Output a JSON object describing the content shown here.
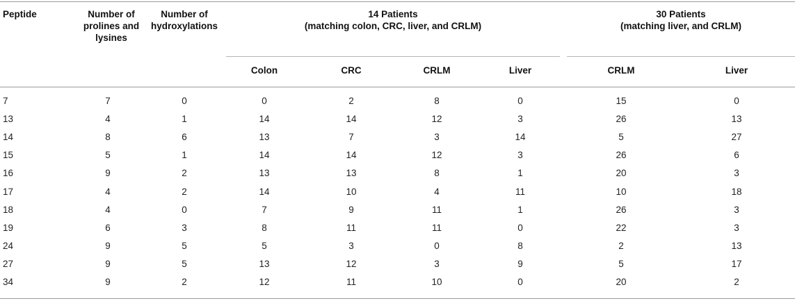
{
  "table": {
    "headers": {
      "peptide": "Peptide",
      "prolines_line1": "Number of",
      "prolines_line2": "prolines and",
      "prolines_line3": "lysines",
      "hydrox_line1": "Number of",
      "hydrox_line2": "hydroxylations",
      "group14_line1": "14 Patients",
      "group14_line2": "(matching colon, CRC, liver, and CRLM)",
      "group30_line1": "30 Patients",
      "group30_line2": "(matching liver, and CRLM)",
      "sub": [
        "Colon",
        "CRC",
        "CRLM",
        "Liver",
        "CRLM",
        "Liver"
      ]
    },
    "rows": [
      [
        "7",
        "7",
        "0",
        "0",
        "2",
        "8",
        "0",
        "15",
        "0"
      ],
      [
        "13",
        "4",
        "1",
        "14",
        "14",
        "12",
        "3",
        "26",
        "13"
      ],
      [
        "14",
        "8",
        "6",
        "13",
        "7",
        "3",
        "14",
        "5",
        "27"
      ],
      [
        "15",
        "5",
        "1",
        "14",
        "14",
        "12",
        "3",
        "26",
        "6"
      ],
      [
        "16",
        "9",
        "2",
        "13",
        "13",
        "8",
        "1",
        "20",
        "3"
      ],
      [
        "17",
        "4",
        "2",
        "14",
        "10",
        "4",
        "11",
        "10",
        "18"
      ],
      [
        "18",
        "4",
        "0",
        "7",
        "9",
        "11",
        "1",
        "26",
        "3"
      ],
      [
        "19",
        "6",
        "3",
        "8",
        "11",
        "11",
        "0",
        "22",
        "3"
      ],
      [
        "24",
        "9",
        "5",
        "5",
        "3",
        "0",
        "8",
        "2",
        "13"
      ],
      [
        "27",
        "9",
        "5",
        "13",
        "12",
        "3",
        "9",
        "5",
        "17"
      ],
      [
        "34",
        "9",
        "2",
        "12",
        "11",
        "10",
        "0",
        "20",
        "2"
      ]
    ]
  }
}
